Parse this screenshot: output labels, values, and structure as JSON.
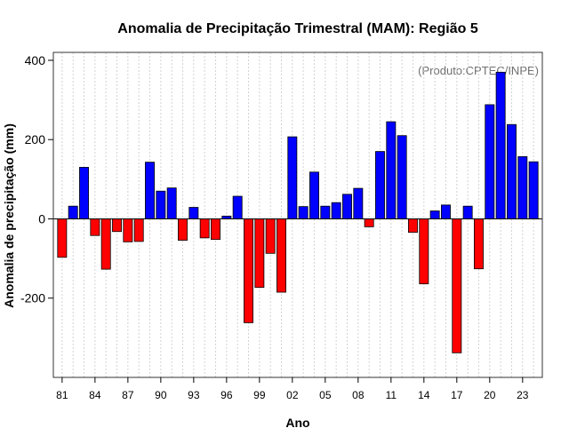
{
  "chart_data": {
    "type": "bar",
    "title": "Anomalia de Precipitação Trimestral (MAM): Região 5",
    "xlabel": "Ano",
    "ylabel": "Anomalia de precipitação (mm)",
    "source_note": "(Produto:CPTEC/INPE)",
    "ylim": [
      -400,
      420
    ],
    "yticks": [
      400,
      200,
      0,
      -200
    ],
    "ytick_labels": [
      "400",
      "200",
      "0",
      "-200"
    ],
    "years": [
      1981,
      1982,
      1983,
      1984,
      1985,
      1986,
      1987,
      1988,
      1989,
      1990,
      1991,
      1992,
      1993,
      1994,
      1995,
      1996,
      1997,
      1998,
      1999,
      2000,
      2001,
      2002,
      2003,
      2004,
      2005,
      2006,
      2007,
      2008,
      2009,
      2010,
      2011,
      2012,
      2013,
      2014,
      2015,
      2016,
      2017,
      2018,
      2019,
      2020,
      2021,
      2022,
      2023,
      2024
    ],
    "values": [
      -97,
      32,
      130,
      -42,
      -127,
      -32,
      -58,
      -57,
      143,
      70,
      78,
      -54,
      29,
      -48,
      -52,
      7,
      57,
      -262,
      -173,
      -87,
      -185,
      207,
      31,
      118,
      32,
      41,
      62,
      77,
      -20,
      170,
      245,
      210,
      -34,
      -164,
      20,
      35,
      -338,
      32,
      -126,
      288,
      370,
      238,
      157,
      144
    ],
    "x_tick_labels": [
      "81",
      "84",
      "87",
      "90",
      "93",
      "96",
      "99",
      "02",
      "05",
      "08",
      "11",
      "14",
      "17",
      "20",
      "23"
    ],
    "x_tick_years": [
      1981,
      1984,
      1987,
      1990,
      1993,
      1996,
      1999,
      2002,
      2005,
      2008,
      2011,
      2014,
      2017,
      2020,
      2023
    ],
    "colors": {
      "positive": "#0000FF",
      "negative": "#FF0000",
      "grid": "#D3D3D3",
      "baseline": "#000000"
    }
  }
}
